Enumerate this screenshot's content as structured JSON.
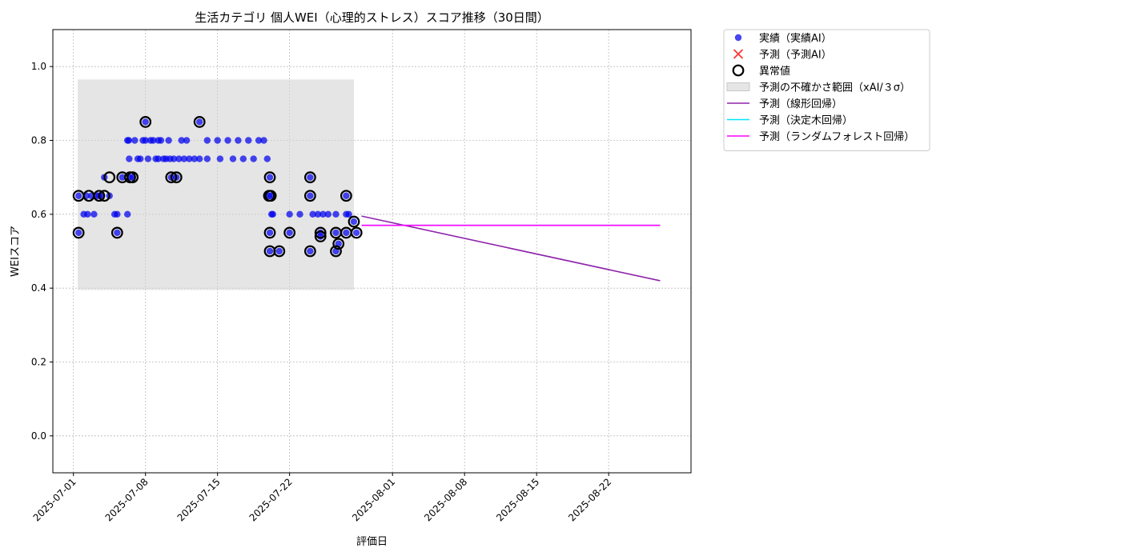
{
  "chart_data": {
    "type": "scatter",
    "title": "生活カテゴリ 個人WEI（心理的ストレス）スコア推移（30日間）",
    "xlabel": "評価日",
    "ylabel": "WEIスコア",
    "xlim": [
      "2025-06-29",
      "2025-08-30"
    ],
    "ylim": [
      -0.1,
      1.1
    ],
    "xticks": [
      "2025-07-01",
      "2025-07-08",
      "2025-07-15",
      "2025-07-22",
      "2025-08-01",
      "2025-08-08",
      "2025-08-15",
      "2025-08-22"
    ],
    "yticks": [
      "0.0",
      "0.2",
      "0.4",
      "0.6",
      "0.8",
      "1.0"
    ],
    "grid": true,
    "legend_position": "outside top-right",
    "legend": [
      {
        "label": "実績（実績AI）",
        "kind": "scatter",
        "color": "#0000ee"
      },
      {
        "label": "予測（予測AI）",
        "kind": "x",
        "color": "#ff3333"
      },
      {
        "label": "異常値",
        "kind": "ring",
        "color": "#000000"
      },
      {
        "label": "予測の不確かさ範囲（xAI/３σ）",
        "kind": "band",
        "color": "#d3d3d3"
      },
      {
        "label": "予測（線形回帰）",
        "kind": "line",
        "color": "#8e24aa"
      },
      {
        "label": "予測（決定木回帰）",
        "kind": "line",
        "color": "#00e5ff"
      },
      {
        "label": "予測（ランダムフォレスト回帰）",
        "kind": "line",
        "color": "#ff00ff"
      }
    ],
    "uncertainty_band": {
      "x": [
        "2025-07-01T10:00",
        "2025-07-28T06:00"
      ],
      "y": [
        0.395,
        0.965
      ]
    },
    "actual": [
      [
        "2025-07-01T12:00",
        0.65
      ],
      [
        "2025-07-01T12:00",
        0.55
      ],
      [
        "2025-07-02T00:00",
        0.6
      ],
      [
        "2025-07-02T06:00",
        0.65
      ],
      [
        "2025-07-02T09:00",
        0.6
      ],
      [
        "2025-07-02T18:00",
        0.65
      ],
      [
        "2025-07-03T00:00",
        0.6
      ],
      [
        "2025-07-03T06:00",
        0.65
      ],
      [
        "2025-07-03T12:00",
        0.65
      ],
      [
        "2025-07-03T18:00",
        0.65
      ],
      [
        "2025-07-04T00:00",
        0.7
      ],
      [
        "2025-07-04T12:00",
        0.65
      ],
      [
        "2025-07-05T00:00",
        0.6
      ],
      [
        "2025-07-05T06:00",
        0.55
      ],
      [
        "2025-07-05T06:00",
        0.6
      ],
      [
        "2025-07-05T18:00",
        0.7
      ],
      [
        "2025-07-06T06:00",
        0.6
      ],
      [
        "2025-07-06T06:00",
        0.8
      ],
      [
        "2025-07-06T09:00",
        0.8
      ],
      [
        "2025-07-06T10:00",
        0.75
      ],
      [
        "2025-07-06T12:00",
        0.7
      ],
      [
        "2025-07-06T18:00",
        0.7
      ],
      [
        "2025-07-06T23:00",
        0.8
      ],
      [
        "2025-07-07T06:00",
        0.75
      ],
      [
        "2025-07-07T12:00",
        0.75
      ],
      [
        "2025-07-07T18:00",
        0.8
      ],
      [
        "2025-07-08T00:00",
        0.85
      ],
      [
        "2025-07-08T00:00",
        0.8
      ],
      [
        "2025-07-08T06:00",
        0.75
      ],
      [
        "2025-07-08T12:00",
        0.8
      ],
      [
        "2025-07-08T18:00",
        0.8
      ],
      [
        "2025-07-09T00:00",
        0.75
      ],
      [
        "2025-07-09T06:00",
        0.8
      ],
      [
        "2025-07-09T06:00",
        0.75
      ],
      [
        "2025-07-09T12:00",
        0.8
      ],
      [
        "2025-07-09T18:00",
        0.75
      ],
      [
        "2025-07-10T00:00",
        0.75
      ],
      [
        "2025-07-10T06:00",
        0.8
      ],
      [
        "2025-07-10T09:00",
        0.75
      ],
      [
        "2025-07-10T12:00",
        0.7
      ],
      [
        "2025-07-10T18:00",
        0.75
      ],
      [
        "2025-07-11T00:00",
        0.7
      ],
      [
        "2025-07-11T06:00",
        0.75
      ],
      [
        "2025-07-11T12:00",
        0.8
      ],
      [
        "2025-07-11T18:00",
        0.75
      ],
      [
        "2025-07-12T00:00",
        0.8
      ],
      [
        "2025-07-12T06:00",
        0.75
      ],
      [
        "2025-07-12T18:00",
        0.75
      ],
      [
        "2025-07-13T06:00",
        0.85
      ],
      [
        "2025-07-13T06:00",
        0.75
      ],
      [
        "2025-07-14T00:00",
        0.8
      ],
      [
        "2025-07-14T00:00",
        0.75
      ],
      [
        "2025-07-15T00:00",
        0.8
      ],
      [
        "2025-07-15T06:00",
        0.75
      ],
      [
        "2025-07-16T00:00",
        0.8
      ],
      [
        "2025-07-16T12:00",
        0.75
      ],
      [
        "2025-07-17T00:00",
        0.8
      ],
      [
        "2025-07-17T12:00",
        0.75
      ],
      [
        "2025-07-18T00:00",
        0.8
      ],
      [
        "2025-07-18T12:00",
        0.75
      ],
      [
        "2025-07-19T00:00",
        0.8
      ],
      [
        "2025-07-19T12:00",
        0.8
      ],
      [
        "2025-07-19T20:00",
        0.75
      ],
      [
        "2025-07-20T00:00",
        0.65
      ],
      [
        "2025-07-20T02:00",
        0.7
      ],
      [
        "2025-07-20T02:00",
        0.55
      ],
      [
        "2025-07-20T02:00",
        0.5
      ],
      [
        "2025-07-20T04:00",
        0.65
      ],
      [
        "2025-07-20T06:00",
        0.6
      ],
      [
        "2025-07-20T09:00",
        0.6
      ],
      [
        "2025-07-21T00:00",
        0.5
      ],
      [
        "2025-07-22T00:00",
        0.55
      ],
      [
        "2025-07-22T00:00",
        0.6
      ],
      [
        "2025-07-23T00:00",
        0.6
      ],
      [
        "2025-07-24T00:00",
        0.65
      ],
      [
        "2025-07-24T00:00",
        0.5
      ],
      [
        "2025-07-24T00:00",
        0.7
      ],
      [
        "2025-07-24T06:00",
        0.6
      ],
      [
        "2025-07-24T18:00",
        0.6
      ],
      [
        "2025-07-25T00:00",
        0.55
      ],
      [
        "2025-07-25T00:00",
        0.54
      ],
      [
        "2025-07-25T06:00",
        0.6
      ],
      [
        "2025-07-25T18:00",
        0.6
      ],
      [
        "2025-07-26T12:00",
        0.5
      ],
      [
        "2025-07-26T12:00",
        0.55
      ],
      [
        "2025-07-26T12:00",
        0.6
      ],
      [
        "2025-07-26T18:00",
        0.52
      ],
      [
        "2025-07-27T12:00",
        0.55
      ],
      [
        "2025-07-27T12:00",
        0.6
      ],
      [
        "2025-07-27T12:00",
        0.65
      ],
      [
        "2025-07-27T18:00",
        0.6
      ],
      [
        "2025-07-28T06:00",
        0.58
      ],
      [
        "2025-07-28T12:00",
        0.55
      ]
    ],
    "anomalies": [
      [
        "2025-07-01T12:00",
        0.65
      ],
      [
        "2025-07-01T12:00",
        0.55
      ],
      [
        "2025-07-02T12:00",
        0.65
      ],
      [
        "2025-07-03T12:00",
        0.65
      ],
      [
        "2025-07-04T00:00",
        0.65
      ],
      [
        "2025-07-04T12:00",
        0.7
      ],
      [
        "2025-07-05T06:00",
        0.55
      ],
      [
        "2025-07-05T18:00",
        0.7
      ],
      [
        "2025-07-06T12:00",
        0.7
      ],
      [
        "2025-07-06T18:00",
        0.7
      ],
      [
        "2025-07-08T00:00",
        0.85
      ],
      [
        "2025-07-10T12:00",
        0.7
      ],
      [
        "2025-07-11T00:00",
        0.7
      ],
      [
        "2025-07-13T06:00",
        0.85
      ],
      [
        "2025-07-20T00:00",
        0.65
      ],
      [
        "2025-07-20T02:00",
        0.7
      ],
      [
        "2025-07-20T02:00",
        0.55
      ],
      [
        "2025-07-20T02:00",
        0.5
      ],
      [
        "2025-07-20T04:00",
        0.65
      ],
      [
        "2025-07-21T00:00",
        0.5
      ],
      [
        "2025-07-22T00:00",
        0.55
      ],
      [
        "2025-07-24T00:00",
        0.65
      ],
      [
        "2025-07-24T00:00",
        0.5
      ],
      [
        "2025-07-24T00:00",
        0.7
      ],
      [
        "2025-07-25T00:00",
        0.55
      ],
      [
        "2025-07-25T00:00",
        0.54
      ],
      [
        "2025-07-26T12:00",
        0.5
      ],
      [
        "2025-07-26T12:00",
        0.55
      ],
      [
        "2025-07-26T18:00",
        0.52
      ],
      [
        "2025-07-27T12:00",
        0.55
      ],
      [
        "2025-07-27T12:00",
        0.65
      ],
      [
        "2025-07-28T06:00",
        0.58
      ],
      [
        "2025-07-28T12:00",
        0.55
      ]
    ],
    "forecast_lines": [
      {
        "name": "予測（線形回帰）",
        "color": "#8e24aa",
        "x": [
          "2025-07-29",
          "2025-08-27"
        ],
        "y": [
          0.595,
          0.42
        ]
      },
      {
        "name": "予測（決定木回帰）",
        "color": "#00e5ff",
        "x": [
          "2025-07-29",
          "2025-08-27"
        ],
        "y": [
          0.57,
          0.57
        ]
      },
      {
        "name": "予測（ランダムフォレスト回帰）",
        "color": "#ff00ff",
        "x": [
          "2025-07-29",
          "2025-08-27"
        ],
        "y": [
          0.57,
          0.57
        ]
      }
    ]
  }
}
